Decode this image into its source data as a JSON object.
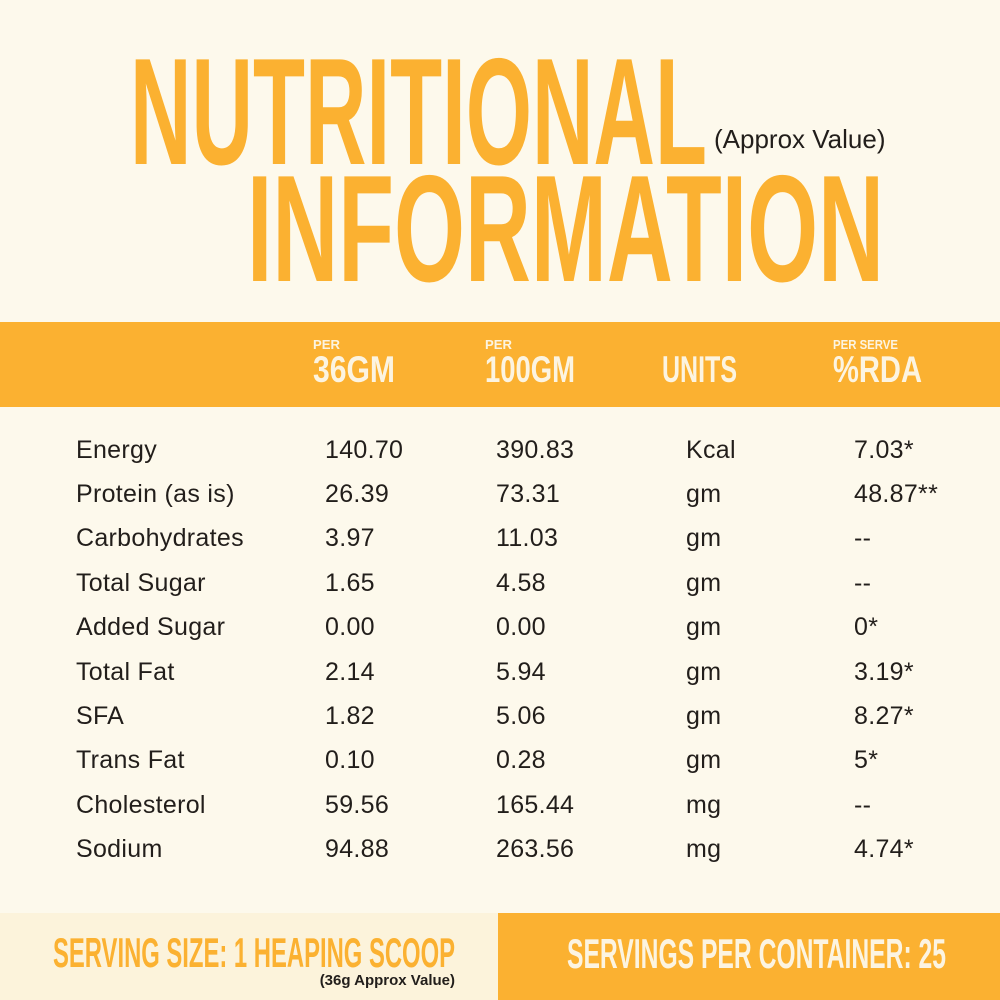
{
  "colors": {
    "orange": "#FBB131",
    "bg": "#FDF9EC",
    "panel-cream": "#FCF3DB",
    "cream-text": "#FCF4E1",
    "ink": "#221E1B"
  },
  "title": {
    "line1": "NUTRITIONAL",
    "line2": "INFORMATION",
    "approx_note": "(Approx Value)"
  },
  "table": {
    "header": {
      "per36": {
        "small": "PER",
        "big": "36GM"
      },
      "per100": {
        "small": "PER",
        "big": "100GM"
      },
      "units": {
        "big": "UNITS"
      },
      "rda": {
        "small": "PER SERVE",
        "big": "%RDA"
      }
    },
    "rows": [
      {
        "label": "Energy",
        "per36": "140.70",
        "per100": "390.83",
        "units": "Kcal",
        "rda": "7.03*"
      },
      {
        "label": "Protein (as is)",
        "per36": "26.39",
        "per100": "73.31",
        "units": "gm",
        "rda": "48.87**"
      },
      {
        "label": "Carbohydrates",
        "per36": "3.97",
        "per100": "11.03",
        "units": "gm",
        "rda": "--"
      },
      {
        "label": "Total Sugar",
        "per36": "1.65",
        "per100": "4.58",
        "units": "gm",
        "rda": "--"
      },
      {
        "label": "Added Sugar",
        "per36": "0.00",
        "per100": "0.00",
        "units": "gm",
        "rda": "0*"
      },
      {
        "label": "Total Fat",
        "per36": "2.14",
        "per100": "5.94",
        "units": "gm",
        "rda": "3.19*"
      },
      {
        "label": "SFA",
        "per36": "1.82",
        "per100": "5.06",
        "units": "gm",
        "rda": "8.27*"
      },
      {
        "label": "Trans Fat",
        "per36": "0.10",
        "per100": "0.28",
        "units": "gm",
        "rda": "5*"
      },
      {
        "label": "Cholesterol",
        "per36": "59.56",
        "per100": "165.44",
        "units": "mg",
        "rda": "--"
      },
      {
        "label": "Sodium",
        "per36": "94.88",
        "per100": "263.56",
        "units": "mg",
        "rda": "4.74*"
      }
    ]
  },
  "footer": {
    "serving_size": "SERVING SIZE: 1 HEAPING SCOOP",
    "serving_note": "(36g Approx Value)",
    "servings_per_container": "SERVINGS PER CONTAINER: 25"
  }
}
